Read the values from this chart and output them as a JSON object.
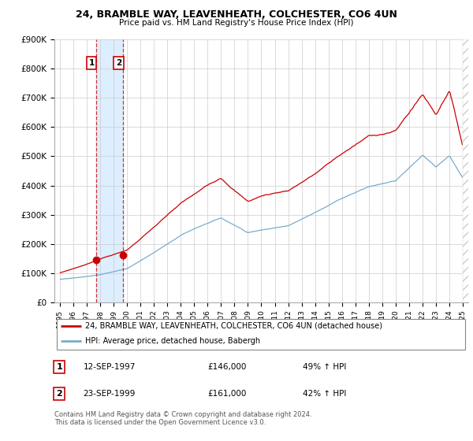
{
  "title1": "24, BRAMBLE WAY, LEAVENHEATH, COLCHESTER, CO6 4UN",
  "title2": "Price paid vs. HM Land Registry's House Price Index (HPI)",
  "ylim": [
    0,
    900000
  ],
  "yticks": [
    0,
    100000,
    200000,
    300000,
    400000,
    500000,
    600000,
    700000,
    800000,
    900000
  ],
  "ytick_labels": [
    "£0",
    "£100K",
    "£200K",
    "£300K",
    "£400K",
    "£500K",
    "£600K",
    "£700K",
    "£800K",
    "£900K"
  ],
  "xlim_start": 1994.6,
  "xlim_end": 2025.4,
  "purchase1": {
    "year": 1997.71,
    "price": 146000,
    "label": "1",
    "date": "12-SEP-1997",
    "amount": "£146,000",
    "pct": "49% ↑ HPI"
  },
  "purchase2": {
    "year": 1999.72,
    "price": 161000,
    "label": "2",
    "date": "23-SEP-1999",
    "amount": "£161,000",
    "pct": "42% ↑ HPI"
  },
  "legend_line1": "24, BRAMBLE WAY, LEAVENHEATH, COLCHESTER, CO6 4UN (detached house)",
  "legend_line2": "HPI: Average price, detached house, Babergh",
  "footer": "Contains HM Land Registry data © Crown copyright and database right 2024.\nThis data is licensed under the Open Government Licence v3.0.",
  "line_color_red": "#cc0000",
  "line_color_blue": "#7aabcc",
  "shade_color": "#ddeeff",
  "marker_color_red": "#cc0000",
  "bg_color": "#ffffff",
  "grid_color": "#cccccc",
  "annotation_box_color": "#cc0000"
}
